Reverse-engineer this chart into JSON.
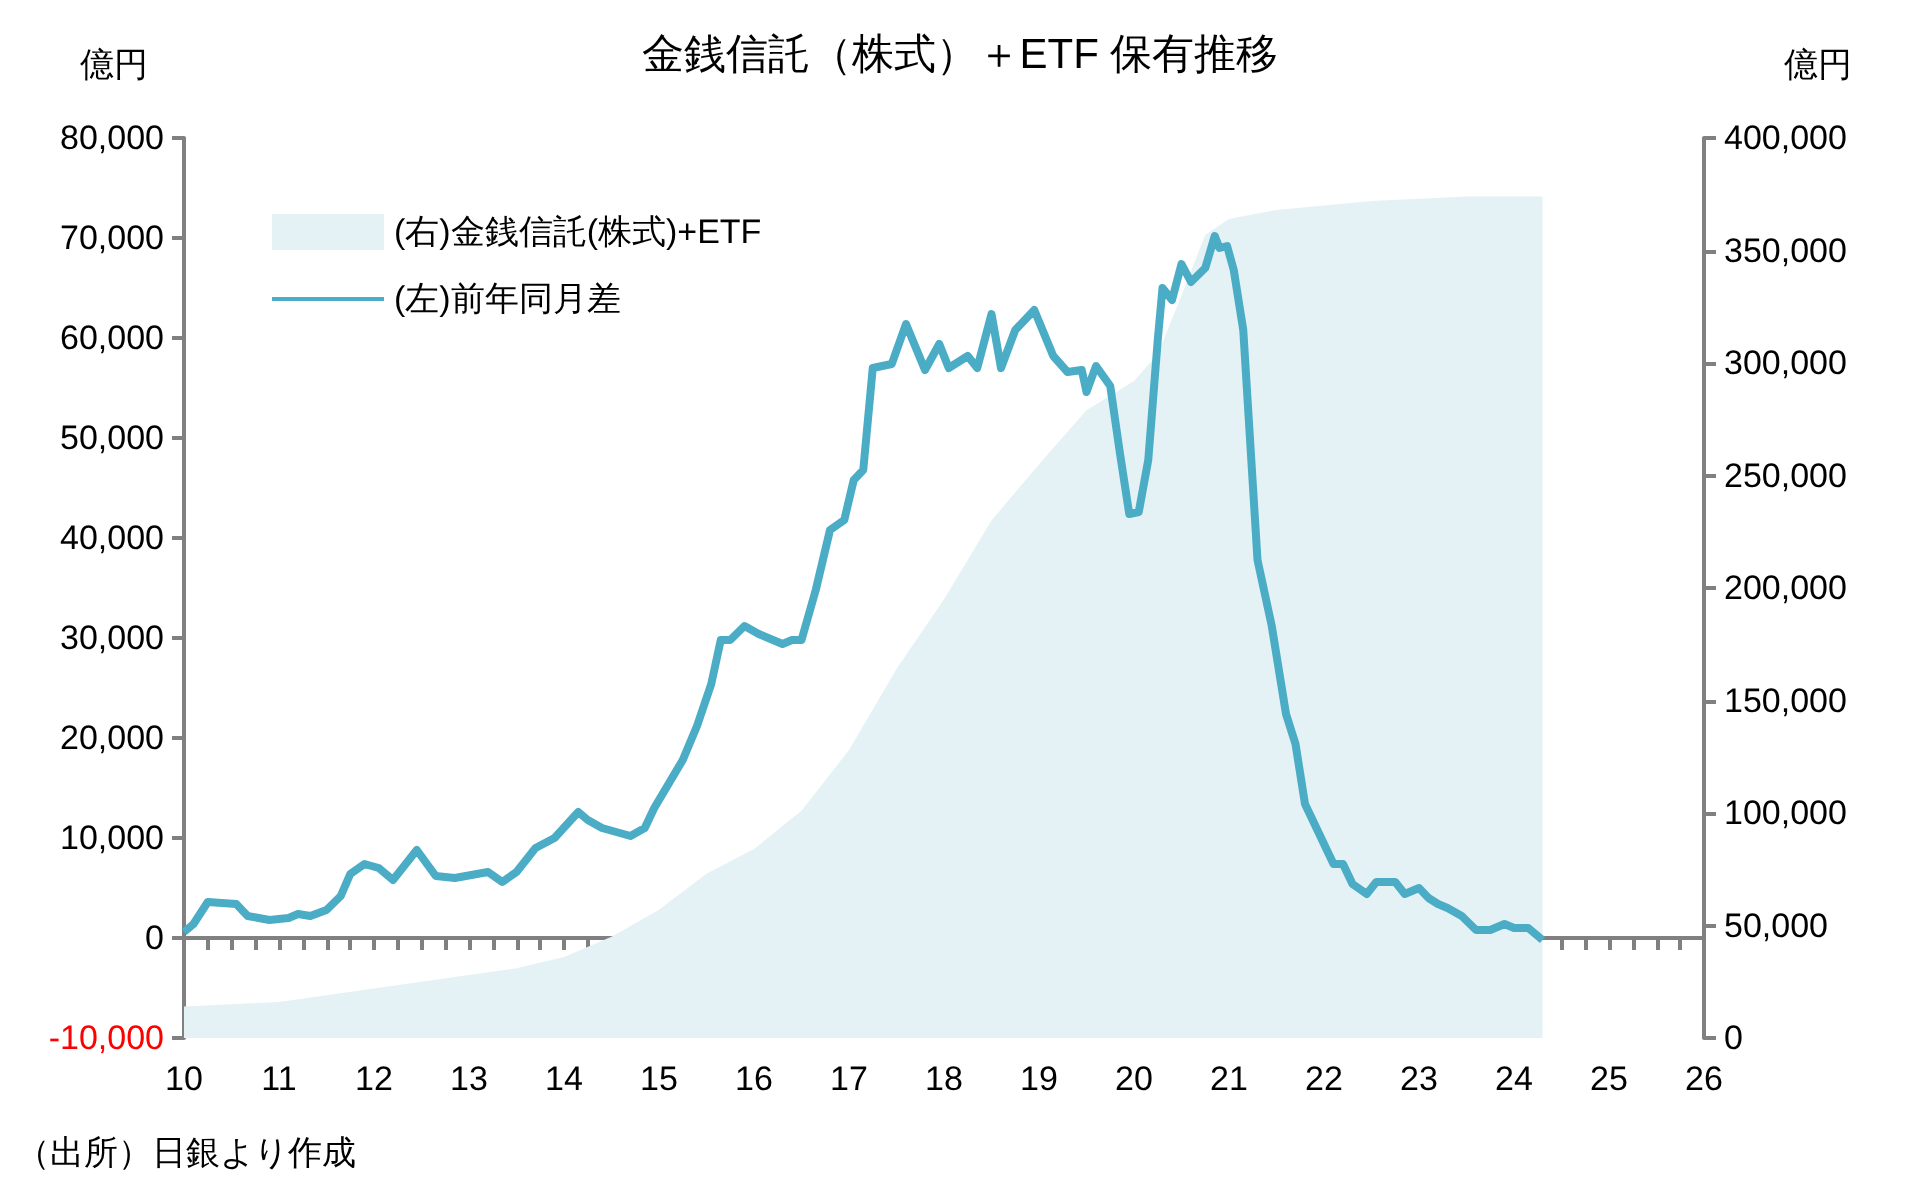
{
  "chart_data": {
    "type": "line",
    "title": "金銭信託（株式）＋ETF 保有推移",
    "ylabel": "億円",
    "y2label": "億円",
    "annotations": [
      "（出所）日銀より作成"
    ],
    "xlim": [
      10,
      26
    ],
    "xticks": [
      10,
      {
        "value": 10.25,
        "label": null
      },
      {
        "value": 10.5,
        "label": null
      },
      {
        "value": 10.75,
        "label": null
      },
      11,
      {
        "value": 11.25,
        "label": null
      },
      {
        "value": 11.5,
        "label": null
      },
      {
        "value": 11.75,
        "label": null
      },
      12,
      {
        "value": 12.25,
        "label": null
      },
      {
        "value": 12.5,
        "label": null
      },
      {
        "value": 12.75,
        "label": null
      },
      13,
      {
        "value": 13.25,
        "label": null
      },
      {
        "value": 13.5,
        "label": null
      },
      {
        "value": 13.75,
        "label": null
      },
      14,
      {
        "value": 14.25,
        "label": null
      },
      {
        "value": 14.5,
        "label": null
      },
      {
        "value": 14.75,
        "label": null
      },
      15,
      {
        "value": 15.25,
        "label": null
      },
      {
        "value": 15.5,
        "label": null
      },
      {
        "value": 15.75,
        "label": null
      },
      16,
      {
        "value": 16.25,
        "label": null
      },
      {
        "value": 16.5,
        "label": null
      },
      {
        "value": 16.75,
        "label": null
      },
      17,
      {
        "value": 17.25,
        "label": null
      },
      {
        "value": 17.5,
        "label": null
      },
      {
        "value": 17.75,
        "label": null
      },
      18,
      {
        "value": 18.25,
        "label": null
      },
      {
        "value": 18.5,
        "label": null
      },
      {
        "value": 18.75,
        "label": null
      },
      19,
      {
        "value": 19.25,
        "label": null
      },
      {
        "value": 19.5,
        "label": null
      },
      {
        "value": 19.75,
        "label": null
      },
      20,
      {
        "value": 20.25,
        "label": null
      },
      {
        "value": 20.5,
        "label": null
      },
      {
        "value": 20.75,
        "label": null
      },
      21,
      {
        "value": 21.25,
        "label": null
      },
      {
        "value": 21.5,
        "label": null
      },
      {
        "value": 21.75,
        "label": null
      },
      22,
      {
        "value": 22.25,
        "label": null
      },
      {
        "value": 22.5,
        "label": null
      },
      {
        "value": 22.75,
        "label": null
      },
      23,
      {
        "value": 23.25,
        "label": null
      },
      {
        "value": 23.5,
        "label": null
      },
      {
        "value": 23.75,
        "label": null
      },
      24,
      {
        "value": 24.25,
        "label": null
      },
      {
        "value": 24.5,
        "label": null
      },
      {
        "value": 24.75,
        "label": null
      },
      25,
      {
        "value": 25.25,
        "label": null
      },
      {
        "value": 25.5,
        "label": null
      },
      {
        "value": 25.75,
        "label": null
      },
      26
    ],
    "ylim": [
      -10000,
      80000
    ],
    "yticks": [
      {
        "value": -10000,
        "label": "-10,000"
      },
      0,
      {
        "value": 10000,
        "label": "10,000"
      },
      {
        "value": 20000,
        "label": "20,000"
      },
      {
        "value": 30000,
        "label": "30,000"
      },
      {
        "value": 40000,
        "label": "40,000"
      },
      {
        "value": 50000,
        "label": "50,000"
      },
      {
        "value": 60000,
        "label": "60,000"
      },
      {
        "value": 70000,
        "label": "70,000"
      },
      {
        "value": 80000,
        "label": "80,000"
      }
    ],
    "y2lim": [
      0,
      400000
    ],
    "y2ticks": [
      0,
      {
        "value": 50000,
        "label": "50,000"
      },
      {
        "value": 100000,
        "label": "100,000"
      },
      {
        "value": 150000,
        "label": "150,000"
      },
      {
        "value": 200000,
        "label": "200,000"
      },
      {
        "value": 250000,
        "label": "250,000"
      },
      {
        "value": 300000,
        "label": "300,000"
      },
      {
        "value": 350000,
        "label": "350,000"
      },
      {
        "value": 400000,
        "label": "400,000"
      }
    ],
    "legend": "top left",
    "series": [
      {
        "name": "(右)金銭信託(株式)+ETF",
        "type": "area",
        "axis": "y2",
        "color": "#e4f2f6",
        "x": [
          10,
          10.5,
          11,
          11.5,
          12,
          12.5,
          13,
          13.5,
          14,
          14.5,
          15,
          15.5,
          16,
          16.5,
          17,
          17.5,
          18,
          18.5,
          19,
          19.5,
          20,
          20.25,
          20.5,
          20.75,
          21,
          21.5,
          22,
          22.5,
          23,
          23.5,
          24,
          24.3
        ],
        "values": [
          14000,
          15000,
          16000,
          19000,
          22000,
          25000,
          28000,
          31000,
          36000,
          45000,
          57000,
          73000,
          84000,
          101000,
          128000,
          164000,
          195000,
          230000,
          255000,
          279000,
          292000,
          304000,
          330000,
          357000,
          364000,
          368000,
          370000,
          372000,
          373000,
          374000,
          374000,
          374000
        ]
      },
      {
        "name": "(左)前年同月差",
        "color": "#4bacc6",
        "x": [
          10,
          10.1,
          10.25,
          10.55,
          10.67,
          10.9,
          11.1,
          11.2,
          11.33,
          11.5,
          11.65,
          11.75,
          11.9,
          12.05,
          12.2,
          12.45,
          12.65,
          12.85,
          13.2,
          13.35,
          13.5,
          13.7,
          13.9,
          14.15,
          14.25,
          14.4,
          14.7,
          14.85,
          14.95,
          15.1,
          15.25,
          15.4,
          15.55,
          15.65,
          15.75,
          15.9,
          16.05,
          16.3,
          16.4,
          16.5,
          16.65,
          16.8,
          16.95,
          17.05,
          17.15,
          17.25,
          17.45,
          17.6,
          17.8,
          17.95,
          18.05,
          18.25,
          18.35,
          18.5,
          18.6,
          18.75,
          18.95,
          19.15,
          19.3,
          19.45,
          19.5,
          19.6,
          19.75,
          19.85,
          19.95,
          20.05,
          20.15,
          20.25,
          20.3,
          20.4,
          20.5,
          20.6,
          20.75,
          20.85,
          20.9,
          20.98,
          21.05,
          21.15,
          21.3,
          21.45,
          21.6,
          21.7,
          21.8,
          21.95,
          22.1,
          22.2,
          22.3,
          22.45,
          22.55,
          22.75,
          22.85,
          23,
          23.1,
          23.2,
          23.3,
          23.45,
          23.6,
          23.75,
          23.9,
          24,
          24.15,
          24.3
        ],
        "values": [
          600,
          1400,
          3600,
          3400,
          2200,
          1800,
          2000,
          2400,
          2200,
          2800,
          4200,
          6400,
          7400,
          7000,
          5800,
          8800,
          6200,
          6000,
          6600,
          5600,
          6600,
          9000,
          10000,
          12600,
          11800,
          11000,
          10200,
          11000,
          13000,
          15400,
          17800,
          21200,
          25400,
          29800,
          29800,
          31200,
          30400,
          29400,
          29800,
          29800,
          34800,
          40800,
          41800,
          45800,
          46800,
          57000,
          57400,
          61400,
          56800,
          59400,
          57000,
          58200,
          57000,
          62400,
          57000,
          60800,
          62800,
          58200,
          56600,
          56800,
          54600,
          57200,
          55200,
          48600,
          42400,
          42600,
          47800,
          59800,
          65000,
          63800,
          67400,
          65600,
          67000,
          70200,
          69000,
          69200,
          66800,
          60800,
          37800,
          31200,
          22400,
          19400,
          13400,
          10400,
          7400,
          7400,
          5400,
          4400,
          5600,
          5600,
          4400,
          5000,
          4000,
          3400,
          3000,
          2200,
          800,
          800,
          1400,
          1000,
          1000,
          -200
        ]
      }
    ]
  }
}
